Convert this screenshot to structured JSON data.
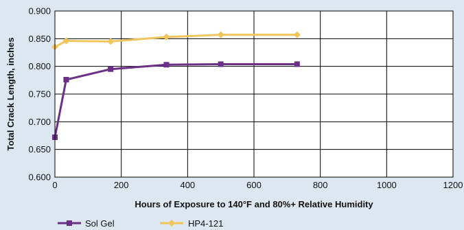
{
  "chart_data": {
    "type": "line",
    "title": "",
    "xlabel": "Hours of Exposure to 140°F and 80%+ Relative Humidity",
    "ylabel": "Total Crack Length, inches",
    "xlim": [
      0,
      1200
    ],
    "ylim": [
      0.6,
      0.9
    ],
    "x_ticks": [
      0,
      200,
      400,
      600,
      800,
      1000,
      1200
    ],
    "x_tick_labels": [
      "0",
      "200",
      "400",
      "600",
      "800",
      "1000",
      "1200"
    ],
    "y_ticks": [
      0.6,
      0.65,
      0.7,
      0.75,
      0.8,
      0.85,
      0.9
    ],
    "y_tick_labels": [
      "0.600",
      "0.650",
      "0.700",
      "0.750",
      "0.800",
      "0.850",
      "0.900"
    ],
    "grid": true,
    "legend_position": "bottom-left",
    "series": [
      {
        "name": "Sol Gel",
        "color": "#6a2f86",
        "marker": "square",
        "x": [
          0,
          34,
          168,
          336,
          500,
          730
        ],
        "y": [
          0.672,
          0.776,
          0.795,
          0.803,
          0.804,
          0.804
        ]
      },
      {
        "name": "HP4-121",
        "color": "#f0c65c",
        "marker": "diamond",
        "x": [
          0,
          34,
          168,
          336,
          500,
          730
        ],
        "y": [
          0.835,
          0.846,
          0.845,
          0.853,
          0.857,
          0.857
        ]
      }
    ]
  }
}
